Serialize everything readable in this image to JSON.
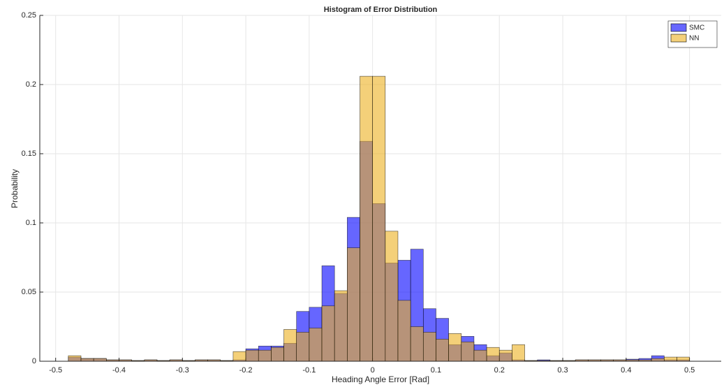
{
  "chart_data": {
    "type": "histogram",
    "title": "Histogram of Error Distribution",
    "x_label": "Heading Angle Error [Rad]",
    "y_label": "Probability",
    "bins": [
      -0.48,
      -0.46,
      -0.44,
      -0.42,
      -0.4,
      -0.38,
      -0.36,
      -0.34,
      -0.32,
      -0.3,
      -0.28,
      -0.26,
      -0.24,
      -0.22,
      -0.2,
      -0.18,
      -0.16,
      -0.14,
      -0.12,
      -0.1,
      -0.08,
      -0.06,
      -0.04,
      -0.02,
      0,
      0.02,
      0.04,
      0.06,
      0.08,
      0.1,
      0.12,
      0.14,
      0.16,
      0.18,
      0.2,
      0.22,
      0.24,
      0.26,
      0.28,
      0.3,
      0.32,
      0.34,
      0.36,
      0.38,
      0.4,
      0.42,
      0.44,
      0.46,
      0.48,
      0.5
    ],
    "series": [
      {
        "name": "SMC",
        "color": "#0000ff",
        "values": [
          0.003,
          0.002,
          0.002,
          0.001,
          0.001,
          0.0005,
          0.001,
          0.0005,
          0.001,
          0.0005,
          0.001,
          0.001,
          0.0005,
          0.001,
          0.009,
          0.011,
          0.011,
          0.013,
          0.036,
          0.039,
          0.069,
          0.049,
          0.104,
          0.159,
          0.114,
          0.071,
          0.073,
          0.081,
          0.038,
          0.031,
          0.012,
          0.018,
          0.012,
          0.004,
          0.006,
          0.001,
          0.0005,
          0.001,
          0.0005,
          0.0005,
          0.001,
          0.001,
          0.001,
          0.001,
          0.0015,
          0.002,
          0.004,
          0.001,
          0.001
        ]
      },
      {
        "name": "NN",
        "color": "#edb120",
        "values": [
          0.004,
          0.002,
          0.002,
          0.001,
          0.001,
          0.0005,
          0.001,
          0.0005,
          0.001,
          0.0005,
          0.001,
          0.001,
          0.0005,
          0.007,
          0.008,
          0.008,
          0.01,
          0.023,
          0.021,
          0.024,
          0.04,
          0.051,
          0.082,
          0.206,
          0.206,
          0.094,
          0.044,
          0.025,
          0.021,
          0.016,
          0.02,
          0.014,
          0.008,
          0.01,
          0.008,
          0.012,
          0.0005,
          0.0005,
          0.0005,
          0.0005,
          0.001,
          0.001,
          0.001,
          0.001,
          0.001,
          0.001,
          0.002,
          0.003,
          0.003
        ]
      }
    ],
    "opacity": 0.6,
    "xlim": [
      -0.525,
      0.55
    ],
    "xticks": [
      -0.5,
      -0.4,
      -0.3,
      -0.2,
      -0.1,
      0,
      0.1,
      0.2,
      0.3,
      0.4,
      0.5
    ],
    "ylim": [
      0,
      0.25
    ],
    "yticks": [
      0,
      0.05,
      0.1,
      0.15,
      0.2,
      0.25
    ],
    "grid": true,
    "legend": "top-right"
  }
}
